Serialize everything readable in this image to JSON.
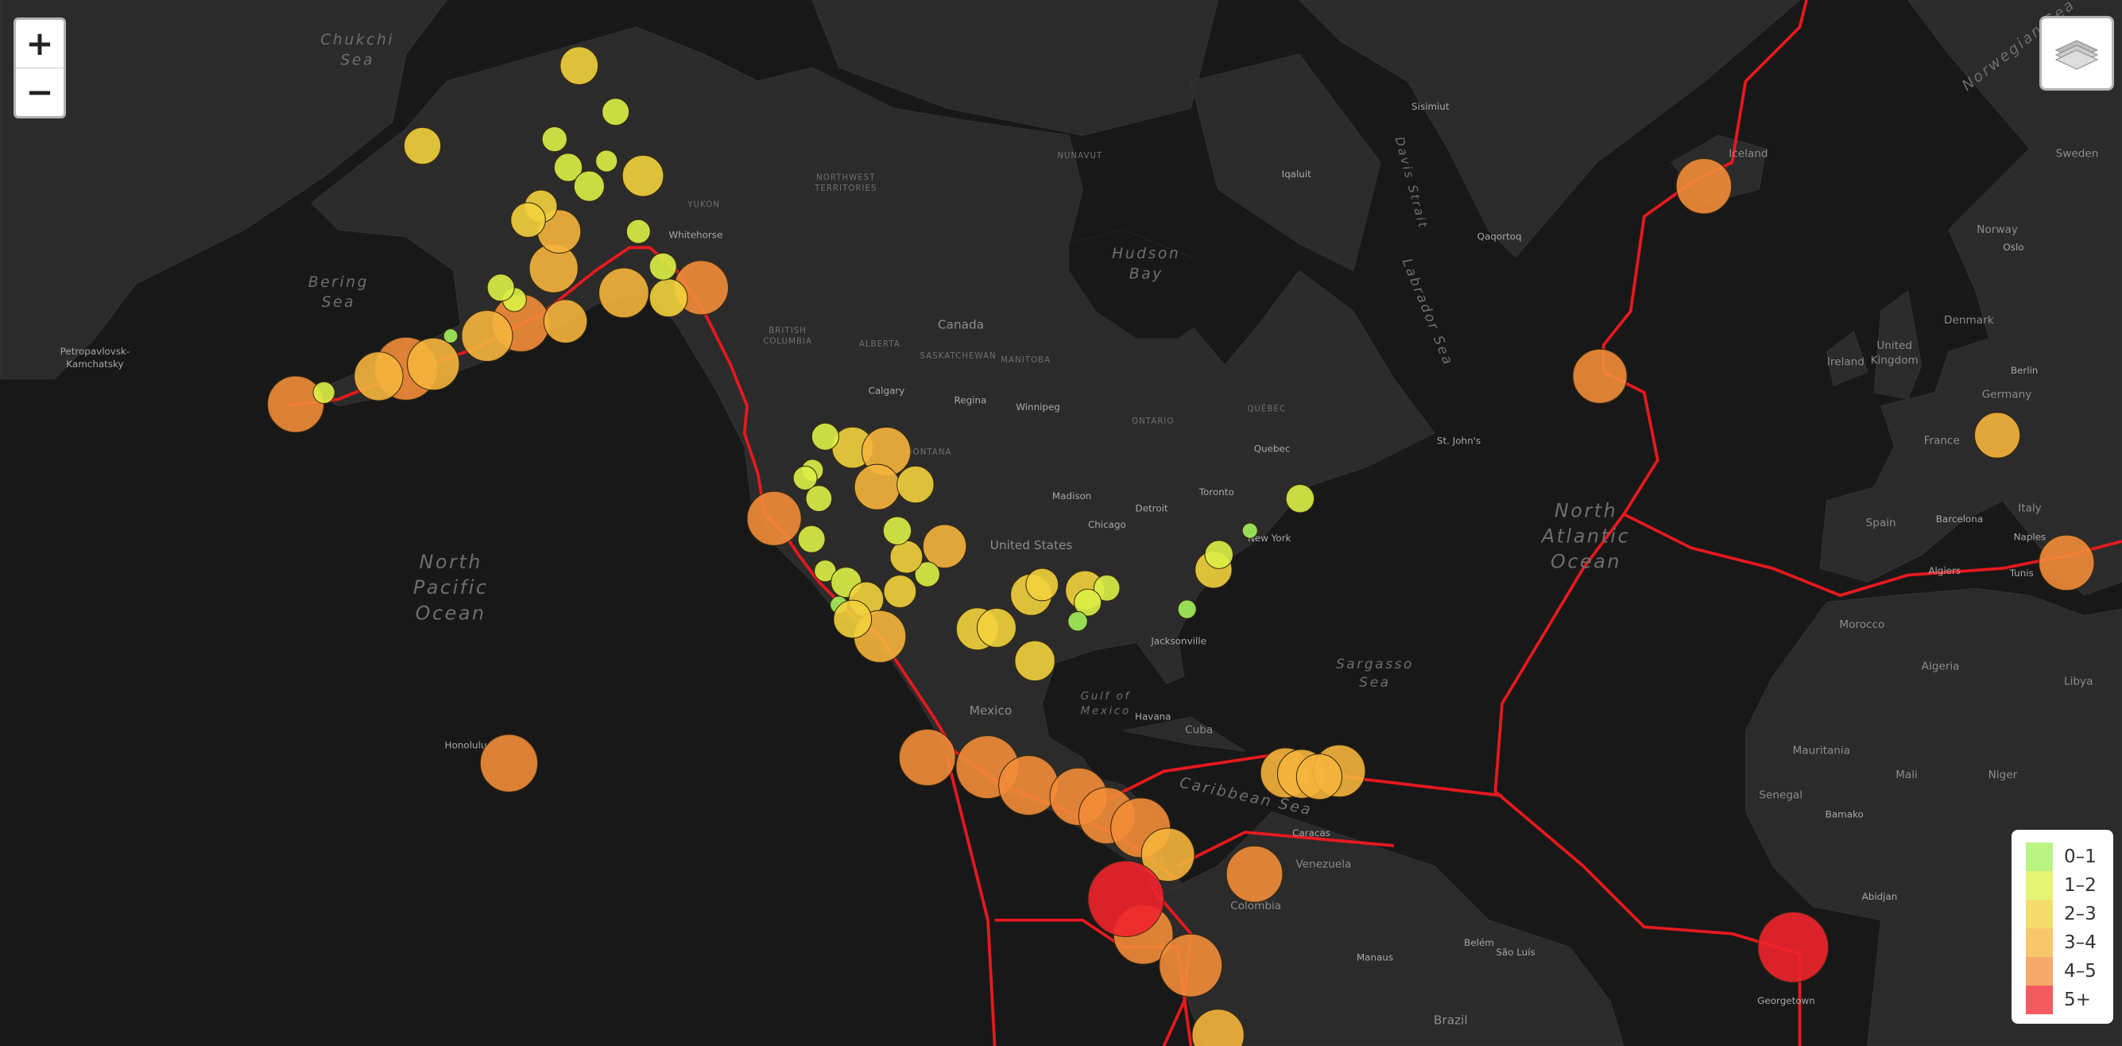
{
  "controls": {
    "zoom_in": "+",
    "zoom_out": "−"
  },
  "legend": [
    {
      "label": "0–1",
      "color": "#a3f05a"
    },
    {
      "label": "1–2",
      "color": "#dcf046"
    },
    {
      "label": "2–3",
      "color": "#f2d23c"
    },
    {
      "label": "3–4",
      "color": "#f5b43c"
    },
    {
      "label": "4–5",
      "color": "#f28c38"
    },
    {
      "label": "5+",
      "color": "#f0242c"
    }
  ],
  "quakes": [
    {
      "lon": -178.9,
      "lat": 50.8,
      "mag": 4.2
    },
    {
      "lon": -166.8,
      "lat": 53.2,
      "mag": 4.8
    },
    {
      "lon": -169.8,
      "lat": 52.7,
      "mag": 3.5
    },
    {
      "lon": -163.8,
      "lat": 53.5,
      "mag": 3.8
    },
    {
      "lon": -154.2,
      "lat": 56.1,
      "mag": 4.3
    },
    {
      "lon": -157.9,
      "lat": 55.3,
      "mag": 3.7
    },
    {
      "lon": -149.3,
      "lat": 56.2,
      "mag": 3.0
    },
    {
      "lon": -142.9,
      "lat": 57.9,
      "mag": 3.6
    },
    {
      "lon": -150.6,
      "lat": 59.3,
      "mag": 3.5
    },
    {
      "lon": -150.0,
      "lat": 61.3,
      "mag": 3.0
    },
    {
      "lon": -147.8,
      "lat": 68.9,
      "mag": 2.5
    },
    {
      "lon": -165.0,
      "lat": 65.5,
      "mag": 2.4
    },
    {
      "lon": -140.8,
      "lat": 64.1,
      "mag": 2.8
    },
    {
      "lon": -143.8,
      "lat": 67.0,
      "mag": 1.5
    },
    {
      "lon": -150.5,
      "lat": 65.8,
      "mag": 1.3
    },
    {
      "lon": -149.0,
      "lat": 64.5,
      "mag": 1.6
    },
    {
      "lon": -152.0,
      "lat": 62.6,
      "mag": 2.0
    },
    {
      "lon": -146.7,
      "lat": 63.6,
      "mag": 1.8
    },
    {
      "lon": -154.9,
      "lat": 57.5,
      "mag": 1.2
    },
    {
      "lon": -156.4,
      "lat": 58.2,
      "mag": 1.5
    },
    {
      "lon": -153.4,
      "lat": 61.9,
      "mag": 2.2
    },
    {
      "lon": -134.4,
      "lat": 58.2,
      "mag": 4.0
    },
    {
      "lon": -138.0,
      "lat": 57.6,
      "mag": 2.5
    },
    {
      "lon": -138.6,
      "lat": 59.4,
      "mag": 1.5
    },
    {
      "lon": -141.3,
      "lat": 61.3,
      "mag": 1.2
    },
    {
      "lon": -144.8,
      "lat": 64.8,
      "mag": 1.0
    },
    {
      "lon": -175.8,
      "lat": 51.6,
      "mag": 1.0
    },
    {
      "lon": -161.9,
      "lat": 55.3,
      "mag": 0.3
    },
    {
      "lon": -126.4,
      "lat": 42.2,
      "mag": 4.0
    },
    {
      "lon": -117.8,
      "lat": 47.7,
      "mag": 2.8
    },
    {
      "lon": -114.1,
      "lat": 47.4,
      "mag": 3.5
    },
    {
      "lon": -115.1,
      "lat": 44.7,
      "mag": 3.2
    },
    {
      "lon": -110.9,
      "lat": 44.9,
      "mag": 2.4
    },
    {
      "lon": -120.8,
      "lat": 48.5,
      "mag": 1.5
    },
    {
      "lon": -122.2,
      "lat": 46.0,
      "mag": 1.0
    },
    {
      "lon": -123.0,
      "lat": 45.4,
      "mag": 1.2
    },
    {
      "lon": -121.5,
      "lat": 43.8,
      "mag": 1.4
    },
    {
      "lon": -107.7,
      "lat": 39.9,
      "mag": 3.0
    },
    {
      "lon": -109.6,
      "lat": 37.5,
      "mag": 1.3
    },
    {
      "lon": -111.9,
      "lat": 39.0,
      "mag": 2.0
    },
    {
      "lon": -122.3,
      "lat": 40.5,
      "mag": 1.5
    },
    {
      "lon": -120.8,
      "lat": 37.8,
      "mag": 1.0
    },
    {
      "lon": -118.5,
      "lat": 36.8,
      "mag": 1.8
    },
    {
      "lon": -116.3,
      "lat": 35.3,
      "mag": 2.2
    },
    {
      "lon": -119.3,
      "lat": 34.8,
      "mag": 0.6
    },
    {
      "lon": -114.8,
      "lat": 31.9,
      "mag": 3.8
    },
    {
      "lon": -117.8,
      "lat": 33.5,
      "mag": 2.5
    },
    {
      "lon": -112.9,
      "lat": 41.2,
      "mag": 1.6
    },
    {
      "lon": -112.6,
      "lat": 36.0,
      "mag": 2.0
    },
    {
      "lon": -98.2,
      "lat": 35.7,
      "mag": 2.8
    },
    {
      "lon": -97.0,
      "lat": 36.6,
      "mag": 2.0
    },
    {
      "lon": -92.3,
      "lat": 36.1,
      "mag": 2.6
    },
    {
      "lon": -89.9,
      "lat": 36.3,
      "mag": 1.4
    },
    {
      "lon": -92.0,
      "lat": 35.0,
      "mag": 1.5
    },
    {
      "lon": -93.1,
      "lat": 33.3,
      "mag": 0.8
    },
    {
      "lon": -104.1,
      "lat": 32.6,
      "mag": 2.9
    },
    {
      "lon": -102.0,
      "lat": 32.7,
      "mag": 2.6
    },
    {
      "lon": -97.8,
      "lat": 29.6,
      "mag": 2.7
    },
    {
      "lon": -81.1,
      "lat": 34.4,
      "mag": 0.7
    },
    {
      "lon": -78.2,
      "lat": 37.9,
      "mag": 2.4
    },
    {
      "lon": -77.6,
      "lat": 39.2,
      "mag": 1.6
    },
    {
      "lon": -68.7,
      "lat": 43.8,
      "mag": 1.6
    },
    {
      "lon": -74.2,
      "lat": 41.2,
      "mag": 0.4
    },
    {
      "lon": -155.5,
      "lat": 19.4,
      "mag": 4.3
    },
    {
      "lon": -109.6,
      "lat": 20.0,
      "mag": 4.2
    },
    {
      "lon": -103.0,
      "lat": 19.0,
      "mag": 4.8
    },
    {
      "lon": -98.5,
      "lat": 17.1,
      "mag": 4.5
    },
    {
      "lon": -93.0,
      "lat": 15.9,
      "mag": 4.3
    },
    {
      "lon": -89.9,
      "lat": 13.9,
      "mag": 4.2
    },
    {
      "lon": -86.2,
      "lat": 12.6,
      "mag": 4.5
    },
    {
      "lon": -83.2,
      "lat": 9.7,
      "mag": 3.9
    },
    {
      "lon": -85.9,
      "lat": 1.0,
      "mag": 4.5
    },
    {
      "lon": -87.8,
      "lat": 4.9,
      "mag": 6.0
    },
    {
      "lon": -80.7,
      "lat": -2.4,
      "mag": 4.8
    },
    {
      "lon": -73.7,
      "lat": 7.6,
      "mag": 4.2
    },
    {
      "lon": -77.7,
      "lat": -10.0,
      "mag": 3.8
    },
    {
      "lon": -70.3,
      "lat": 18.4,
      "mag": 3.6
    },
    {
      "lon": -68.5,
      "lat": 18.3,
      "mag": 3.5
    },
    {
      "lon": -64.4,
      "lat": 18.6,
      "mag": 3.8
    },
    {
      "lon": -66.6,
      "lat": 18.0,
      "mag": 3.2
    },
    {
      "lon": -24.4,
      "lat": 63.6,
      "mag": 4.1
    },
    {
      "lon": -35.8,
      "lat": 52.7,
      "mag": 4.0
    },
    {
      "lon": 7.8,
      "lat": 48.6,
      "mag": 3.2
    },
    {
      "lon": 15.4,
      "lat": 38.5,
      "mag": 4.1
    },
    {
      "lon": -14.6,
      "lat": -0.4,
      "mag": 5.5
    }
  ],
  "labels": [
    {
      "lines": [
        "Chukchi",
        "Sea"
      ]
    },
    {
      "lines": [
        "Bering",
        "Sea"
      ]
    },
    {
      "lines": [
        "North",
        "Pacific",
        "Ocean"
      ]
    },
    {
      "lines": [
        "Hudson",
        "Bay"
      ]
    },
    {
      "lines": [
        "Labrador Sea"
      ]
    },
    {
      "lines": [
        "Davis Strait"
      ]
    },
    {
      "lines": [
        "North",
        "Atlantic",
        "Ocean"
      ]
    },
    {
      "lines": [
        "Sargasso",
        "Sea"
      ]
    },
    {
      "lines": [
        "Gulf of",
        "Mexico"
      ]
    },
    {
      "lines": [
        "Caribbean Sea"
      ]
    },
    {
      "lines": [
        "Norwegian Sea"
      ]
    },
    {
      "lines": [
        "Canada"
      ]
    },
    {
      "lines": [
        "United States"
      ]
    },
    {
      "lines": [
        "Mexico"
      ]
    },
    {
      "lines": [
        "Cuba"
      ]
    },
    {
      "lines": [
        "Venezuela"
      ]
    },
    {
      "lines": [
        "Colombia"
      ]
    },
    {
      "lines": [
        "Brazil"
      ]
    },
    {
      "lines": [
        "Iceland"
      ]
    },
    {
      "lines": [
        "Ireland"
      ]
    },
    {
      "lines": [
        "United",
        "Kingdom"
      ]
    },
    {
      "lines": [
        "Denmark"
      ]
    },
    {
      "lines": [
        "Norway"
      ]
    },
    {
      "lines": [
        "Sweden"
      ]
    },
    {
      "lines": [
        "Germany"
      ]
    },
    {
      "lines": [
        "France"
      ]
    },
    {
      "lines": [
        "Spain"
      ]
    },
    {
      "lines": [
        "Italy"
      ]
    },
    {
      "lines": [
        "Morocco"
      ]
    },
    {
      "lines": [
        "Algeria"
      ]
    },
    {
      "lines": [
        "Libya"
      ]
    },
    {
      "lines": [
        "Mauritania"
      ]
    },
    {
      "lines": [
        "Mali"
      ]
    },
    {
      "lines": [
        "Niger"
      ]
    },
    {
      "lines": [
        "Senegal"
      ]
    },
    {
      "lines": [
        "NUNAVUT"
      ]
    },
    {
      "lines": [
        "NORTHWEST",
        "TERRITORIES"
      ]
    },
    {
      "lines": [
        "YUKON"
      ]
    },
    {
      "lines": [
        "BRITISH",
        "COLUMBIA"
      ]
    },
    {
      "lines": [
        "ALBERTA"
      ]
    },
    {
      "lines": [
        "SASKATCHEWAN"
      ]
    },
    {
      "lines": [
        "MANITOBA"
      ]
    },
    {
      "lines": [
        "ONTARIO"
      ]
    },
    {
      "lines": [
        "QUÉBEC"
      ]
    },
    {
      "lines": [
        "MONTANA"
      ]
    },
    {
      "lines": [
        "Whitehorse"
      ]
    },
    {
      "lines": [
        "Calgary"
      ]
    },
    {
      "lines": [
        "Regina"
      ]
    },
    {
      "lines": [
        "Winnipeg"
      ]
    },
    {
      "lines": [
        "Quebec"
      ]
    },
    {
      "lines": [
        "Toronto"
      ]
    },
    {
      "lines": [
        "New York"
      ]
    },
    {
      "lines": [
        "Chicago"
      ]
    },
    {
      "lines": [
        "Detroit"
      ]
    },
    {
      "lines": [
        "Madison"
      ]
    },
    {
      "lines": [
        "Jacksonville"
      ]
    },
    {
      "lines": [
        "Havana"
      ]
    },
    {
      "lines": [
        "Caracas"
      ]
    },
    {
      "lines": [
        "Manaus"
      ]
    },
    {
      "lines": [
        "Belém"
      ]
    },
    {
      "lines": [
        "São Luís"
      ]
    },
    {
      "lines": [
        "Honolulu"
      ]
    },
    {
      "lines": [
        "Petropavlovsk-",
        "Kamchatsky"
      ]
    },
    {
      "lines": [
        "St. John's"
      ]
    },
    {
      "lines": [
        "Iqaluit"
      ]
    },
    {
      "lines": [
        "Qaqortoq"
      ]
    },
    {
      "lines": [
        "Sisimiut"
      ]
    },
    {
      "lines": [
        "Barcelona"
      ]
    },
    {
      "lines": [
        "Naples"
      ]
    },
    {
      "lines": [
        "Algiers"
      ]
    },
    {
      "lines": [
        "Tunis"
      ]
    },
    {
      "lines": [
        "Bamako"
      ]
    },
    {
      "lines": [
        "Oslo"
      ]
    },
    {
      "lines": [
        "Berlin"
      ]
    },
    {
      "lines": [
        "Abidjan"
      ]
    },
    {
      "lines": [
        "Georgetown"
      ]
    }
  ]
}
